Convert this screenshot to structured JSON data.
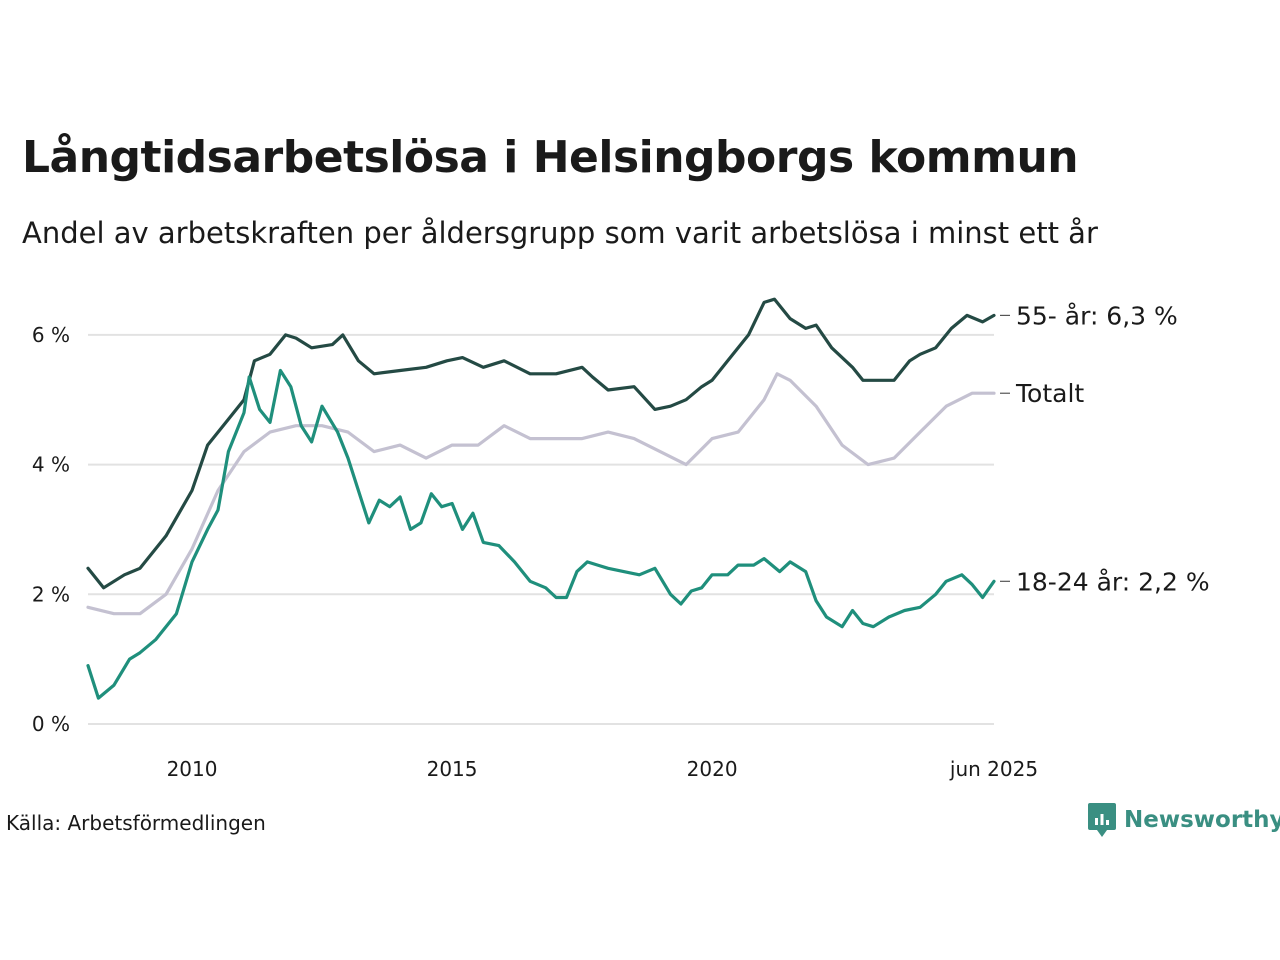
{
  "title": "Långtidsarbetslösa i Helsingborgs kommun",
  "subtitle": "Andel av arbetskraften per åldersgrupp som varit arbetslösa i minst ett år",
  "source": "Källa: Arbetsförmedlingen",
  "brand": {
    "name": "Newsworthy",
    "icon": "newsworthy-logo-icon",
    "color": "#3a8f82"
  },
  "chart_data": {
    "type": "line",
    "x_axis": {
      "min": 2008.0,
      "max": 2025.42,
      "ticks": [
        {
          "value": 2010,
          "label": "2010"
        },
        {
          "value": 2015,
          "label": "2015"
        },
        {
          "value": 2020,
          "label": "2020"
        },
        {
          "value": 2025.42,
          "label": "jun 2025"
        }
      ]
    },
    "y_axis": {
      "min": 0,
      "max": 7,
      "ticks": [
        {
          "value": 0,
          "label": "0 %"
        },
        {
          "value": 2,
          "label": "2 %"
        },
        {
          "value": 4,
          "label": "4 %"
        },
        {
          "value": 6,
          "label": "6 %"
        }
      ]
    },
    "grid": true,
    "series": [
      {
        "name": "Totalt",
        "end_label": "Totalt",
        "color": "#c4c1d1",
        "points": [
          [
            2008.0,
            1.8
          ],
          [
            2008.5,
            1.7
          ],
          [
            2009.0,
            1.7
          ],
          [
            2009.5,
            2.0
          ],
          [
            2010.0,
            2.7
          ],
          [
            2010.5,
            3.6
          ],
          [
            2011.0,
            4.2
          ],
          [
            2011.5,
            4.5
          ],
          [
            2012.0,
            4.6
          ],
          [
            2012.5,
            4.6
          ],
          [
            2013.0,
            4.5
          ],
          [
            2013.5,
            4.2
          ],
          [
            2014.0,
            4.3
          ],
          [
            2014.5,
            4.1
          ],
          [
            2015.0,
            4.3
          ],
          [
            2015.5,
            4.3
          ],
          [
            2016.0,
            4.6
          ],
          [
            2016.5,
            4.4
          ],
          [
            2017.0,
            4.4
          ],
          [
            2017.5,
            4.4
          ],
          [
            2018.0,
            4.5
          ],
          [
            2018.5,
            4.4
          ],
          [
            2019.0,
            4.2
          ],
          [
            2019.5,
            4.0
          ],
          [
            2020.0,
            4.4
          ],
          [
            2020.5,
            4.5
          ],
          [
            2021.0,
            5.0
          ],
          [
            2021.25,
            5.4
          ],
          [
            2021.5,
            5.3
          ],
          [
            2022.0,
            4.9
          ],
          [
            2022.5,
            4.3
          ],
          [
            2023.0,
            4.0
          ],
          [
            2023.5,
            4.1
          ],
          [
            2024.0,
            4.5
          ],
          [
            2024.5,
            4.9
          ],
          [
            2025.0,
            5.1
          ],
          [
            2025.42,
            5.1
          ]
        ]
      },
      {
        "name": "55- år",
        "end_label": "55- år: 6,3 %",
        "color": "#244a44",
        "points": [
          [
            2008.0,
            2.4
          ],
          [
            2008.3,
            2.1
          ],
          [
            2008.7,
            2.3
          ],
          [
            2009.0,
            2.4
          ],
          [
            2009.5,
            2.9
          ],
          [
            2010.0,
            3.6
          ],
          [
            2010.3,
            4.3
          ],
          [
            2010.7,
            4.7
          ],
          [
            2011.0,
            5.0
          ],
          [
            2011.2,
            5.6
          ],
          [
            2011.5,
            5.7
          ],
          [
            2011.8,
            6.0
          ],
          [
            2012.0,
            5.95
          ],
          [
            2012.3,
            5.8
          ],
          [
            2012.7,
            5.85
          ],
          [
            2012.9,
            6.0
          ],
          [
            2013.2,
            5.6
          ],
          [
            2013.5,
            5.4
          ],
          [
            2014.0,
            5.45
          ],
          [
            2014.5,
            5.5
          ],
          [
            2014.9,
            5.6
          ],
          [
            2015.2,
            5.65
          ],
          [
            2015.6,
            5.5
          ],
          [
            2016.0,
            5.6
          ],
          [
            2016.5,
            5.4
          ],
          [
            2017.0,
            5.4
          ],
          [
            2017.5,
            5.5
          ],
          [
            2017.7,
            5.35
          ],
          [
            2018.0,
            5.15
          ],
          [
            2018.5,
            5.2
          ],
          [
            2018.9,
            4.85
          ],
          [
            2019.2,
            4.9
          ],
          [
            2019.5,
            5.0
          ],
          [
            2019.8,
            5.2
          ],
          [
            2020.0,
            5.3
          ],
          [
            2020.3,
            5.6
          ],
          [
            2020.7,
            6.0
          ],
          [
            2021.0,
            6.5
          ],
          [
            2021.2,
            6.55
          ],
          [
            2021.5,
            6.25
          ],
          [
            2021.8,
            6.1
          ],
          [
            2022.0,
            6.15
          ],
          [
            2022.3,
            5.8
          ],
          [
            2022.7,
            5.5
          ],
          [
            2022.9,
            5.3
          ],
          [
            2023.5,
            5.3
          ],
          [
            2023.8,
            5.6
          ],
          [
            2024.0,
            5.7
          ],
          [
            2024.3,
            5.8
          ],
          [
            2024.6,
            6.1
          ],
          [
            2024.9,
            6.3
          ],
          [
            2025.2,
            6.2
          ],
          [
            2025.42,
            6.3
          ]
        ]
      },
      {
        "name": "18-24 år",
        "end_label": "18-24 år: 2,2 %",
        "color": "#1f8f7c",
        "points": [
          [
            2008.0,
            0.9
          ],
          [
            2008.2,
            0.4
          ],
          [
            2008.5,
            0.6
          ],
          [
            2008.8,
            1.0
          ],
          [
            2009.0,
            1.1
          ],
          [
            2009.3,
            1.3
          ],
          [
            2009.7,
            1.7
          ],
          [
            2010.0,
            2.5
          ],
          [
            2010.3,
            3.0
          ],
          [
            2010.5,
            3.3
          ],
          [
            2010.7,
            4.2
          ],
          [
            2011.0,
            4.8
          ],
          [
            2011.1,
            5.35
          ],
          [
            2011.3,
            4.85
          ],
          [
            2011.5,
            4.65
          ],
          [
            2011.7,
            5.45
          ],
          [
            2011.9,
            5.2
          ],
          [
            2012.1,
            4.6
          ],
          [
            2012.3,
            4.35
          ],
          [
            2012.5,
            4.9
          ],
          [
            2012.8,
            4.5
          ],
          [
            2013.0,
            4.1
          ],
          [
            2013.2,
            3.6
          ],
          [
            2013.4,
            3.1
          ],
          [
            2013.6,
            3.45
          ],
          [
            2013.8,
            3.35
          ],
          [
            2014.0,
            3.5
          ],
          [
            2014.2,
            3.0
          ],
          [
            2014.4,
            3.1
          ],
          [
            2014.6,
            3.55
          ],
          [
            2014.8,
            3.35
          ],
          [
            2015.0,
            3.4
          ],
          [
            2015.2,
            3.0
          ],
          [
            2015.4,
            3.25
          ],
          [
            2015.6,
            2.8
          ],
          [
            2015.9,
            2.75
          ],
          [
            2016.2,
            2.5
          ],
          [
            2016.5,
            2.2
          ],
          [
            2016.8,
            2.1
          ],
          [
            2017.0,
            1.95
          ],
          [
            2017.2,
            1.95
          ],
          [
            2017.4,
            2.35
          ],
          [
            2017.6,
            2.5
          ],
          [
            2017.8,
            2.45
          ],
          [
            2018.0,
            2.4
          ],
          [
            2018.3,
            2.35
          ],
          [
            2018.6,
            2.3
          ],
          [
            2018.9,
            2.4
          ],
          [
            2019.2,
            2.0
          ],
          [
            2019.4,
            1.85
          ],
          [
            2019.6,
            2.05
          ],
          [
            2019.8,
            2.1
          ],
          [
            2020.0,
            2.3
          ],
          [
            2020.3,
            2.3
          ],
          [
            2020.5,
            2.45
          ],
          [
            2020.8,
            2.45
          ],
          [
            2021.0,
            2.55
          ],
          [
            2021.3,
            2.35
          ],
          [
            2021.5,
            2.5
          ],
          [
            2021.8,
            2.35
          ],
          [
            2022.0,
            1.9
          ],
          [
            2022.2,
            1.65
          ],
          [
            2022.5,
            1.5
          ],
          [
            2022.7,
            1.75
          ],
          [
            2022.9,
            1.55
          ],
          [
            2023.1,
            1.5
          ],
          [
            2023.4,
            1.65
          ],
          [
            2023.7,
            1.75
          ],
          [
            2024.0,
            1.8
          ],
          [
            2024.3,
            2.0
          ],
          [
            2024.5,
            2.2
          ],
          [
            2024.8,
            2.3
          ],
          [
            2025.0,
            2.15
          ],
          [
            2025.2,
            1.95
          ],
          [
            2025.42,
            2.2
          ]
        ]
      }
    ]
  }
}
